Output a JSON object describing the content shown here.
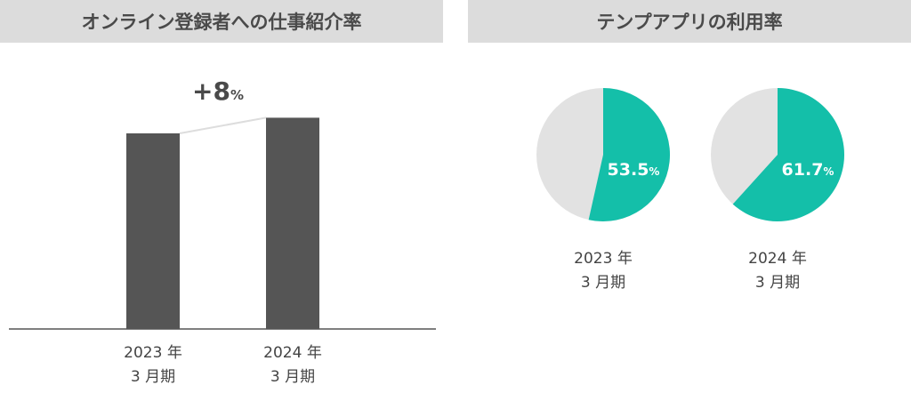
{
  "chart_data": [
    {
      "type": "bar",
      "title": "オンライン登録者への仕事紹介率",
      "categories": [
        "2023 年\n3 月期",
        "2024 年\n3 月期"
      ],
      "values": [
        100,
        108
      ],
      "annotation": {
        "value": "+8",
        "unit": "%"
      },
      "colors": {
        "bar": "#555555",
        "connector": "#dddddd",
        "axis": "#555555"
      }
    },
    {
      "type": "pie",
      "title": "テンプアプリの利用率",
      "charts": [
        {
          "category": "2023 年\n3 月期",
          "value": 53.5,
          "value_label": "53.5",
          "unit": "%"
        },
        {
          "category": "2024 年\n3 月期",
          "value": 61.7,
          "value_label": "61.7",
          "unit": "%"
        }
      ],
      "colors": {
        "value": "#14bfa9",
        "remainder": "#e2e2e2"
      }
    }
  ]
}
